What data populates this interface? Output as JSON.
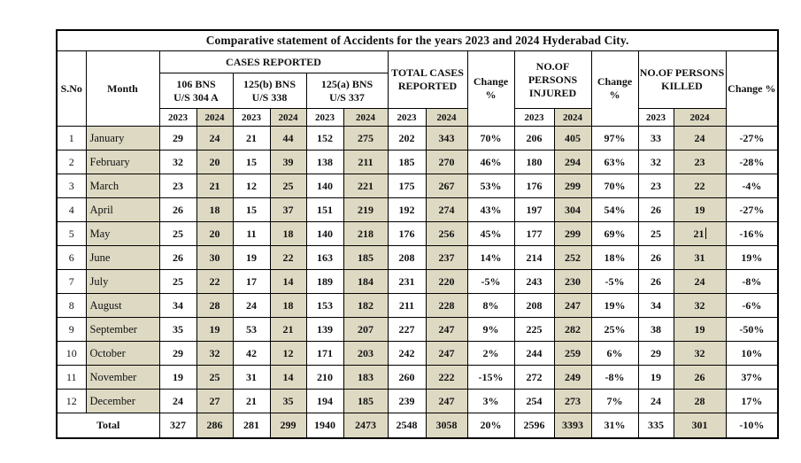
{
  "title": "Comparative statement of Accidents for the years  2023 and 2024 Hyderabad City.",
  "colors": {
    "tan_shading": "#ddd9c3",
    "border": "#000000",
    "text": "#111111",
    "page_background": "#ffffff"
  },
  "header": {
    "sno": "S.No",
    "month": "Month",
    "cases_reported": "CASES REPORTED",
    "group_106": "106 BNS\nU/S 304 A",
    "group_125b": "125(b) BNS\nU/S 338",
    "group_125a": "125(a) BNS\nU/S 337",
    "total_cases": "TOTAL CASES\nREPORTED",
    "injured": "NO.OF\nPERSONS\nINJURED",
    "killed": "NO.OF PERSONS\nKILLED",
    "change_pct_stacked": "Change\n%",
    "change_pct_inline": "Change %",
    "year_2023": "2023",
    "year_2024": "2024"
  },
  "rows": [
    {
      "sno": "1",
      "month": "January",
      "a23": "29",
      "a24": "24",
      "b23": "21",
      "b24": "44",
      "c23": "152",
      "c24": "275",
      "t23": "202",
      "t24": "343",
      "tchg": "70%",
      "i23": "206",
      "i24": "405",
      "ichg": "97%",
      "k23": "33",
      "k24": "24",
      "kchg": "-27%"
    },
    {
      "sno": "2",
      "month": "February",
      "a23": "32",
      "a24": "20",
      "b23": "15",
      "b24": "39",
      "c23": "138",
      "c24": "211",
      "t23": "185",
      "t24": "270",
      "tchg": "46%",
      "i23": "180",
      "i24": "294",
      "ichg": "63%",
      "k23": "32",
      "k24": "23",
      "kchg": "-28%"
    },
    {
      "sno": "3",
      "month": "March",
      "a23": "23",
      "a24": "21",
      "b23": "12",
      "b24": "25",
      "c23": "140",
      "c24": "221",
      "t23": "175",
      "t24": "267",
      "tchg": "53%",
      "i23": "176",
      "i24": "299",
      "ichg": "70%",
      "k23": "23",
      "k24": "22",
      "kchg": "-4%"
    },
    {
      "sno": "4",
      "month": "April",
      "a23": "26",
      "a24": "18",
      "b23": "15",
      "b24": "37",
      "c23": "151",
      "c24": "219",
      "t23": "192",
      "t24": "274",
      "tchg": "43%",
      "i23": "197",
      "i24": "304",
      "ichg": "54%",
      "k23": "26",
      "k24": "19",
      "kchg": "-27%"
    },
    {
      "sno": "5",
      "month": "May",
      "a23": "25",
      "a24": "20",
      "b23": "11",
      "b24": "18",
      "c23": "140",
      "c24": "218",
      "t23": "176",
      "t24": "256",
      "tchg": "45%",
      "i23": "177",
      "i24": "299",
      "ichg": "69%",
      "k23": "25",
      "k24": "21",
      "kchg": "-16%"
    },
    {
      "sno": "6",
      "month": "June",
      "a23": "26",
      "a24": "30",
      "b23": "19",
      "b24": "22",
      "c23": "163",
      "c24": "185",
      "t23": "208",
      "t24": "237",
      "tchg": "14%",
      "i23": "214",
      "i24": "252",
      "ichg": "18%",
      "k23": "26",
      "k24": "31",
      "kchg": "19%"
    },
    {
      "sno": "7",
      "month": "July",
      "a23": "25",
      "a24": "22",
      "b23": "17",
      "b24": "14",
      "c23": "189",
      "c24": "184",
      "t23": "231",
      "t24": "220",
      "tchg": "-5%",
      "i23": "243",
      "i24": "230",
      "ichg": "-5%",
      "k23": "26",
      "k24": "24",
      "kchg": "-8%"
    },
    {
      "sno": "8",
      "month": "August",
      "a23": "34",
      "a24": "28",
      "b23": "24",
      "b24": "18",
      "c23": "153",
      "c24": "182",
      "t23": "211",
      "t24": "228",
      "tchg": "8%",
      "i23": "208",
      "i24": "247",
      "ichg": "19%",
      "k23": "34",
      "k24": "32",
      "kchg": "-6%"
    },
    {
      "sno": "9",
      "month": "September",
      "a23": "35",
      "a24": "19",
      "b23": "53",
      "b24": "21",
      "c23": "139",
      "c24": "207",
      "t23": "227",
      "t24": "247",
      "tchg": "9%",
      "i23": "225",
      "i24": "282",
      "ichg": "25%",
      "k23": "38",
      "k24": "19",
      "kchg": "-50%"
    },
    {
      "sno": "10",
      "month": "October",
      "a23": "29",
      "a24": "32",
      "b23": "42",
      "b24": "12",
      "c23": "171",
      "c24": "203",
      "t23": "242",
      "t24": "247",
      "tchg": "2%",
      "i23": "244",
      "i24": "259",
      "ichg": "6%",
      "k23": "29",
      "k24": "32",
      "kchg": "10%"
    },
    {
      "sno": "11",
      "month": "November",
      "a23": "19",
      "a24": "25",
      "b23": "31",
      "b24": "14",
      "c23": "210",
      "c24": "183",
      "t23": "260",
      "t24": "222",
      "tchg": "-15%",
      "i23": "272",
      "i24": "249",
      "ichg": "-8%",
      "k23": "19",
      "k24": "26",
      "kchg": "37%"
    },
    {
      "sno": "12",
      "month": "December",
      "a23": "24",
      "a24": "27",
      "b23": "21",
      "b24": "35",
      "c23": "194",
      "c24": "185",
      "t23": "239",
      "t24": "247",
      "tchg": "3%",
      "i23": "254",
      "i24": "273",
      "ichg": "7%",
      "k23": "24",
      "k24": "28",
      "kchg": "17%"
    }
  ],
  "total_row": {
    "label": "Total",
    "a23": "327",
    "a24": "286",
    "b23": "281",
    "b24": "299",
    "c23": "1940",
    "c24": "2473",
    "t23": "2548",
    "t24": "3058",
    "tchg": "20%",
    "i23": "2596",
    "i24": "3393",
    "ichg": "31%",
    "k23": "335",
    "k24": "301",
    "kchg": "-10%"
  },
  "text_cursor": {
    "row_sno": "5",
    "field": "k24"
  }
}
